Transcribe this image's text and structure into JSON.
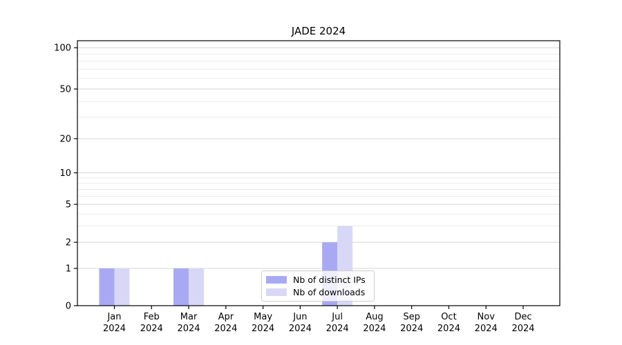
{
  "chart_data": {
    "type": "bar",
    "title": "JADE 2024",
    "categories": [
      "Jan",
      "Feb",
      "Mar",
      "Apr",
      "May",
      "Jun",
      "Jul",
      "Aug",
      "Sep",
      "Oct",
      "Nov",
      "Dec"
    ],
    "year_label": "2024",
    "series": [
      {
        "name": "Nb of distinct IPs",
        "color": "#a9a9f3",
        "values": [
          1,
          0,
          1,
          0,
          0,
          0,
          2,
          0,
          0,
          0,
          0,
          0
        ]
      },
      {
        "name": "Nb of downloads",
        "color": "#d8d8f6",
        "values": [
          1,
          0,
          1,
          0,
          0,
          0,
          3,
          0,
          0,
          0,
          0,
          0
        ]
      }
    ],
    "y_axis": {
      "scale": "log-like",
      "ticks": [
        0,
        1,
        2,
        5,
        10,
        20,
        50,
        100
      ],
      "minor_ticks": [
        3,
        4,
        6,
        7,
        8,
        9,
        30,
        40,
        60,
        70,
        80,
        90
      ],
      "range": [
        0,
        112
      ]
    },
    "x_axis": {
      "tick_count": 12
    },
    "legend": {
      "position": "lower-center"
    },
    "grid": {
      "major_color": "#d4d4d4",
      "minor_color": "#ececec"
    },
    "colors": {
      "spine": "#000000",
      "background": "#ffffff",
      "text": "#000000"
    }
  }
}
